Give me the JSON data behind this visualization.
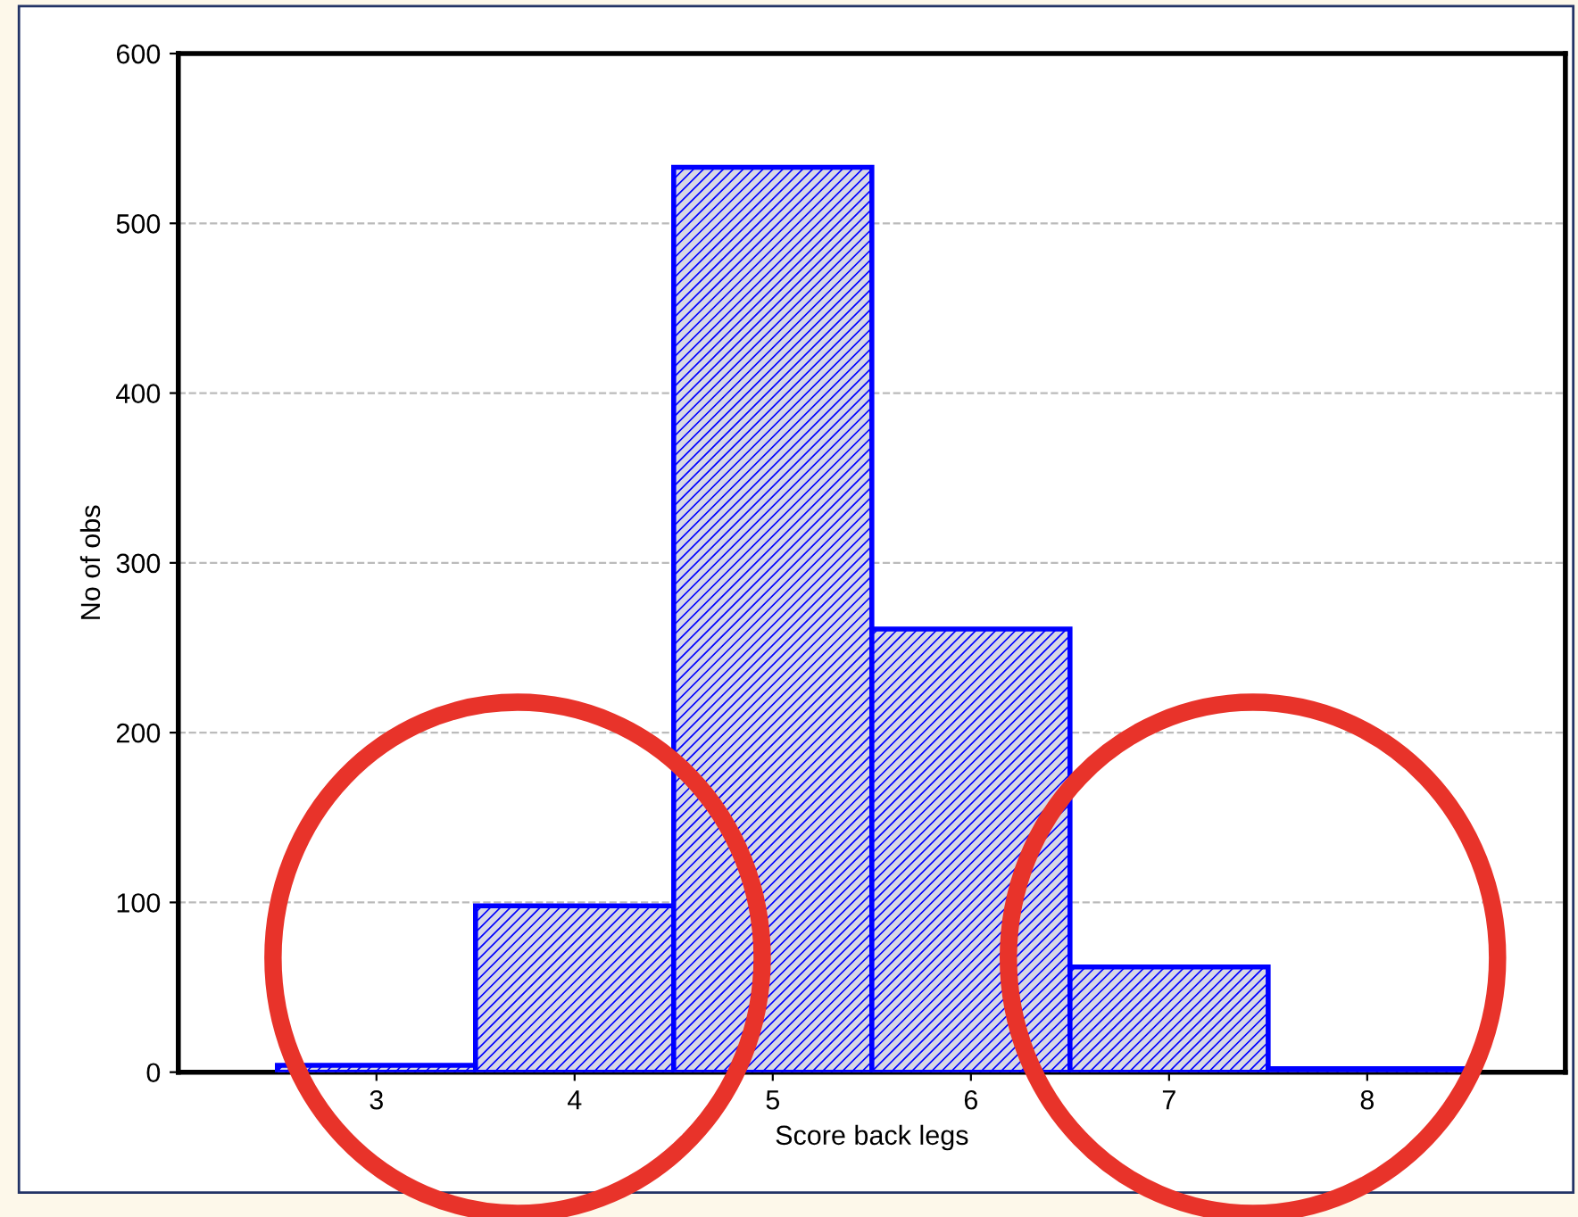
{
  "chart_data": {
    "type": "bar",
    "categories": [
      "3",
      "4",
      "5",
      "6",
      "7",
      "8"
    ],
    "values": [
      4,
      98,
      533,
      261,
      62,
      2
    ],
    "color": "#0000ff",
    "xlabel": "Score back legs",
    "ylabel": "No of obs",
    "ylim": [
      0,
      600
    ],
    "yticks": [
      0,
      100,
      200,
      300,
      400,
      500,
      600
    ],
    "grid": "y"
  }
}
